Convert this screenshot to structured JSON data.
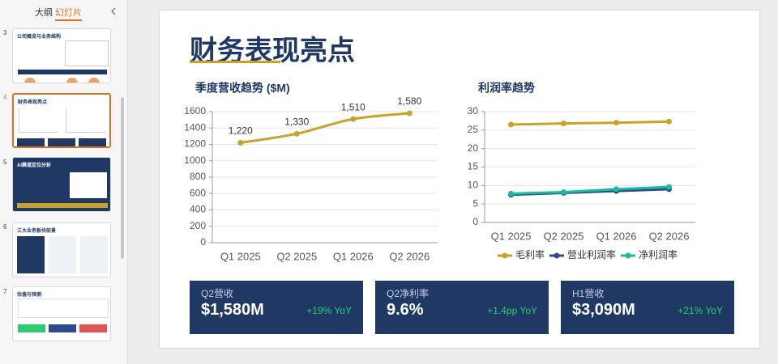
{
  "sidebar": {
    "tabs": [
      "大纲",
      "幻灯片"
    ],
    "slides": [
      {
        "number": 3,
        "title": "公司概览与业务结构"
      },
      {
        "number": 4,
        "title": "财务表现亮点"
      },
      {
        "number": 5,
        "title": "AI赛道定位分析"
      },
      {
        "number": 6,
        "title": "三大业务板块前景"
      },
      {
        "number": 7,
        "title": "估值与预测"
      }
    ]
  },
  "slide": {
    "title": "财务表现亮点",
    "cards": [
      {
        "label": "Q2营收",
        "value": "$1,580M",
        "change": "+19% YoY"
      },
      {
        "label": "Q2净利率",
        "value": "9.6%",
        "change": "+1.4pp YoY"
      },
      {
        "label": "H1营收",
        "value": "$3,090M",
        "change": "+21% YoY"
      }
    ]
  },
  "chart_data": [
    {
      "type": "line",
      "title": "季度营收趋势 ($M)",
      "smooth": true,
      "categories": [
        "Q1 2025",
        "Q2 2025",
        "Q1 2026",
        "Q2 2026"
      ],
      "values": [
        1220,
        1330,
        1510,
        1580
      ],
      "value_labels": [
        "1,220",
        "1,330",
        "1,510",
        "1,580"
      ],
      "color": "#c9a227",
      "ylim": [
        0,
        1600
      ],
      "yticks": [
        0,
        200,
        400,
        600,
        800,
        1000,
        1200,
        1400,
        1600
      ],
      "grid": true
    },
    {
      "type": "line",
      "title": "利润率趋势",
      "smooth": false,
      "categories": [
        "Q1 2025",
        "Q2 2025",
        "Q1 2026",
        "Q2 2026"
      ],
      "series": [
        {
          "name": "毛利率",
          "color": "#c9a227",
          "values": [
            26.5,
            26.8,
            27.0,
            27.3
          ]
        },
        {
          "name": "营业利润率",
          "color": "#2e4a8c",
          "values": [
            7.5,
            8.0,
            8.5,
            9.0
          ]
        },
        {
          "name": "净利润率",
          "color": "#1abc9c",
          "values": [
            7.8,
            8.2,
            9.0,
            9.6
          ]
        }
      ],
      "ylim": [
        0,
        30
      ],
      "yticks": [
        0,
        5,
        10,
        15,
        20,
        25,
        30
      ],
      "grid": true,
      "legend": "bottom"
    }
  ]
}
